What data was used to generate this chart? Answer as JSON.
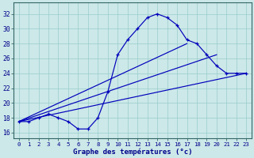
{
  "title": "Graphe des températures (°c)",
  "bg_color": "#cce8e8",
  "grid_color": "#99cccc",
  "line_color": "#0000bb",
  "x_ticks": [
    0,
    1,
    2,
    3,
    4,
    5,
    6,
    7,
    8,
    9,
    10,
    11,
    12,
    13,
    14,
    15,
    16,
    17,
    18,
    19,
    20,
    21,
    22,
    23
  ],
  "y_ticks": [
    16,
    18,
    20,
    22,
    24,
    26,
    28,
    30,
    32
  ],
  "ylim": [
    15.2,
    33.5
  ],
  "xlim": [
    -0.5,
    23.5
  ],
  "main_curve": {
    "x": [
      0,
      1,
      2,
      3,
      4,
      5,
      6,
      7,
      8,
      9,
      10,
      11,
      12,
      13,
      14,
      15,
      16,
      17,
      18,
      19,
      20,
      21,
      22,
      23
    ],
    "y": [
      17.5,
      17.5,
      18.0,
      18.5,
      18.0,
      17.5,
      16.5,
      16.5,
      18.0,
      21.5,
      26.5,
      28.5,
      30.0,
      31.5,
      32.0,
      31.5,
      30.5,
      28.5,
      28.0,
      26.5,
      25.0,
      24.0,
      24.0,
      24.0
    ]
  },
  "diag_lines": [
    {
      "x": [
        0,
        17
      ],
      "y": [
        17.5,
        28.0
      ]
    },
    {
      "x": [
        0,
        20
      ],
      "y": [
        17.5,
        26.5
      ]
    },
    {
      "x": [
        0,
        23
      ],
      "y": [
        17.5,
        24.0
      ]
    }
  ]
}
